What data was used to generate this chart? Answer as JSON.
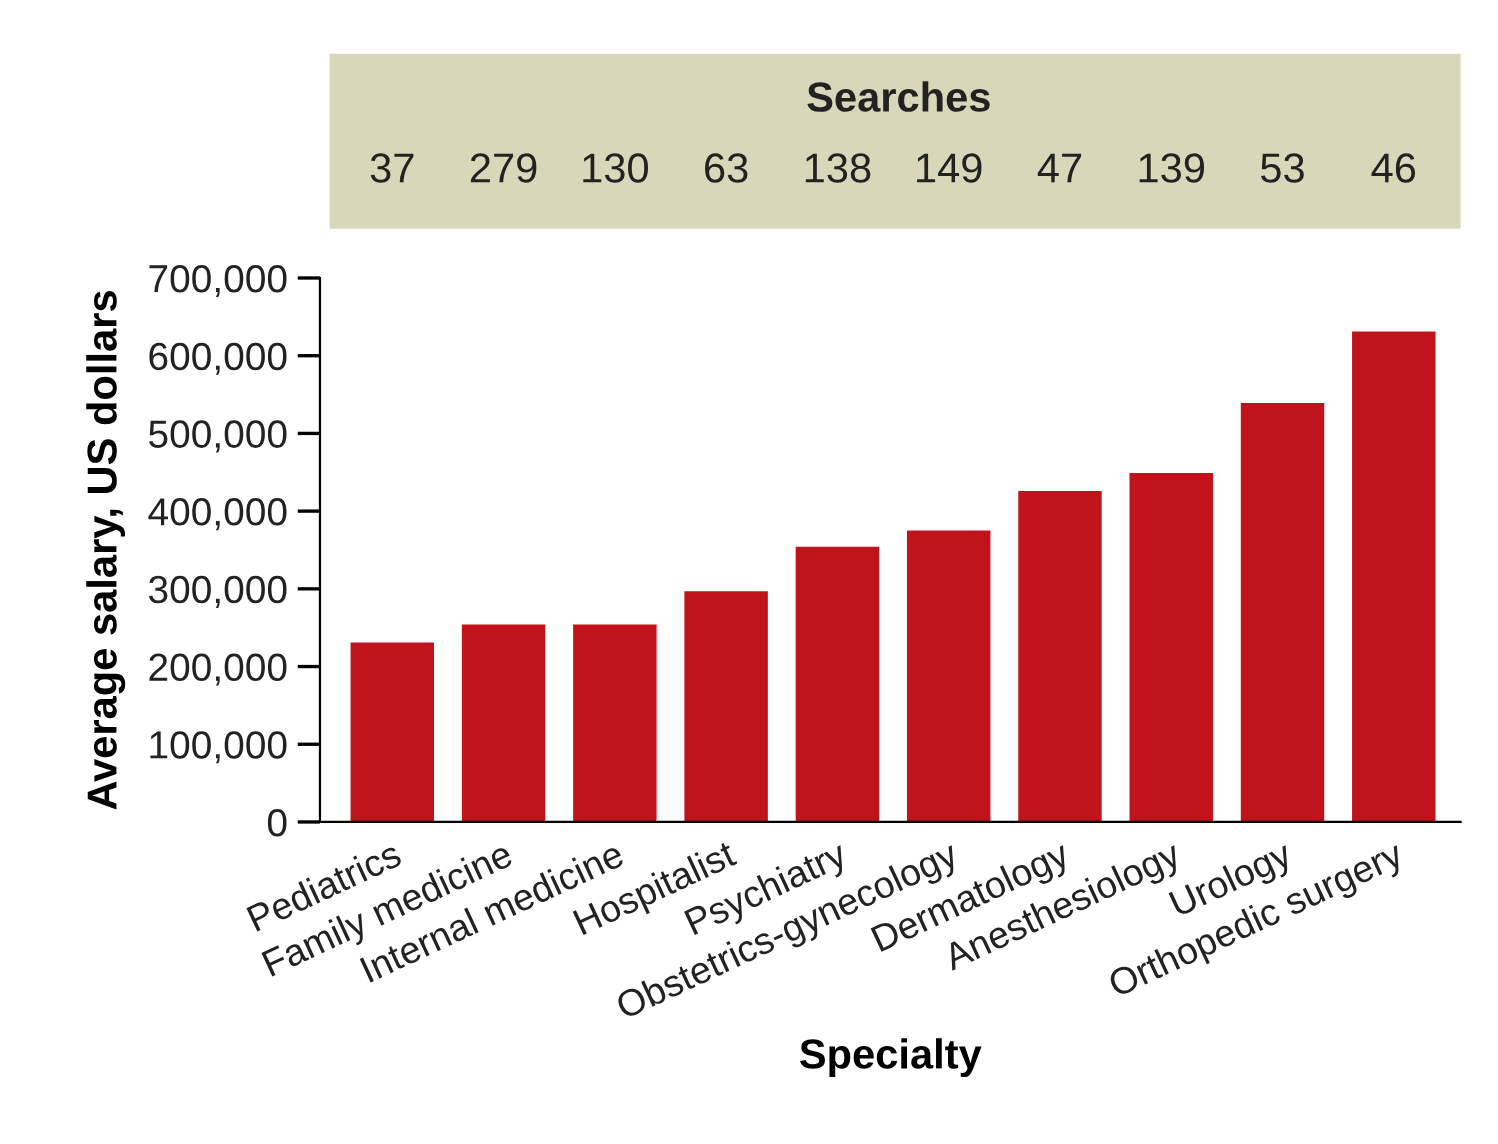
{
  "chart_data": {
    "type": "bar",
    "xlabel": "Specialty",
    "ylabel": "Average salary, US dollars",
    "categories": [
      "Pediatrics",
      "Family medicine",
      "Internal medicine",
      "Hospitalist",
      "Psychiatry",
      "Obstetrics-gynecology",
      "Dermatology",
      "Anesthesiology",
      "Urology",
      "Orthopedic surgery"
    ],
    "values": [
      231000,
      254000,
      254000,
      297000,
      354000,
      375000,
      426000,
      449000,
      539000,
      631000
    ],
    "color": "#c1131b",
    "ylim": [
      0,
      700000
    ],
    "yticks": [
      {
        "value": 0,
        "label": "0"
      },
      {
        "value": 100000,
        "label": "100,000"
      },
      {
        "value": 200000,
        "label": "200,000"
      },
      {
        "value": 300000,
        "label": "300,000"
      },
      {
        "value": 400000,
        "label": "400,000"
      },
      {
        "value": 500000,
        "label": "500,000"
      },
      {
        "value": 600000,
        "label": "600,000"
      },
      {
        "value": 700000,
        "label": "700,000"
      }
    ],
    "annotations": [
      "Searches",
      "37",
      "279",
      "130",
      "63",
      "138",
      "149",
      "47",
      "139",
      "53",
      "46"
    ],
    "grid": false
  }
}
